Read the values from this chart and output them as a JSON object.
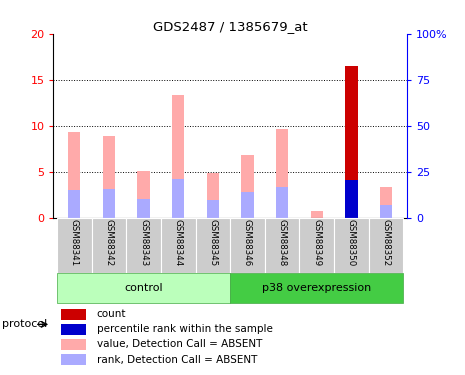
{
  "title": "GDS2487 / 1385679_at",
  "samples": [
    "GSM88341",
    "GSM88342",
    "GSM88343",
    "GSM88344",
    "GSM88345",
    "GSM88346",
    "GSM88348",
    "GSM88349",
    "GSM88350",
    "GSM88352"
  ],
  "value_absent": [
    9.4,
    8.9,
    5.1,
    13.4,
    4.9,
    6.9,
    9.7,
    0.85,
    0.0,
    3.4
  ],
  "rank_absent": [
    3.1,
    3.2,
    2.1,
    4.3,
    2.0,
    2.9,
    3.4,
    0.0,
    0.0,
    1.5
  ],
  "count_val": [
    0,
    0,
    0,
    0,
    0,
    0,
    0,
    0,
    16.5,
    0
  ],
  "percentile_val": [
    0,
    0,
    0,
    0,
    0,
    0,
    0,
    0,
    4.2,
    0
  ],
  "groups": [
    "control",
    "control",
    "control",
    "control",
    "control",
    "p38 overexpression",
    "p38 overexpression",
    "p38 overexpression",
    "p38 overexpression",
    "p38 overexpression"
  ],
  "ylim_left": [
    0,
    20
  ],
  "ylim_right": [
    0,
    100
  ],
  "yticks_left": [
    0,
    5,
    10,
    15,
    20
  ],
  "ytick_labels_left": [
    "0",
    "5",
    "10",
    "15",
    "20"
  ],
  "yticks_right": [
    0,
    25,
    50,
    75,
    100
  ],
  "ytick_labels_right": [
    "0",
    "25",
    "50",
    "75",
    "100%"
  ],
  "color_count": "#cc0000",
  "color_percentile": "#0000cc",
  "color_value_absent": "#ffaaaa",
  "color_rank_absent": "#aaaaff",
  "legend_items": [
    {
      "label": "count",
      "color": "#cc0000"
    },
    {
      "label": "percentile rank within the sample",
      "color": "#0000cc"
    },
    {
      "label": "value, Detection Call = ABSENT",
      "color": "#ffaaaa"
    },
    {
      "label": "rank, Detection Call = ABSENT",
      "color": "#aaaaff"
    }
  ],
  "bar_width": 0.35,
  "control_label": "control",
  "p38_label": "p38 overexpression",
  "protocol_label": "protocol",
  "control_color": "#bbffbb",
  "p38_color": "#44cc44",
  "sample_bg_color": "#cccccc"
}
